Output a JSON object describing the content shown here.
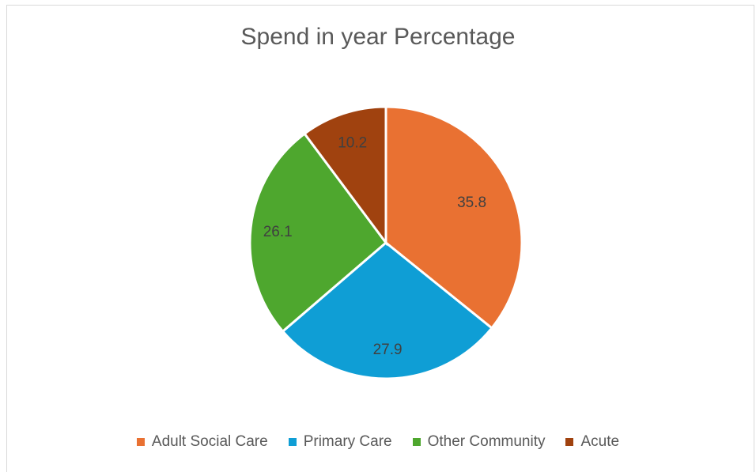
{
  "chart_data": {
    "type": "pie",
    "title": "Spend in year Percentage",
    "categories": [
      "Adult Social Care",
      "Primary Care",
      "Other Community",
      "Acute"
    ],
    "values": [
      35.8,
      27.9,
      26.1,
      10.2
    ],
    "colors": [
      "#E97132",
      "#0F9ED5",
      "#4EA72E",
      "#A0420F"
    ],
    "data_labels": [
      "35.8",
      "27.9",
      "26.1",
      "10.2"
    ],
    "legend_position": "bottom",
    "start_angle": "12 o'clock, clockwise"
  }
}
